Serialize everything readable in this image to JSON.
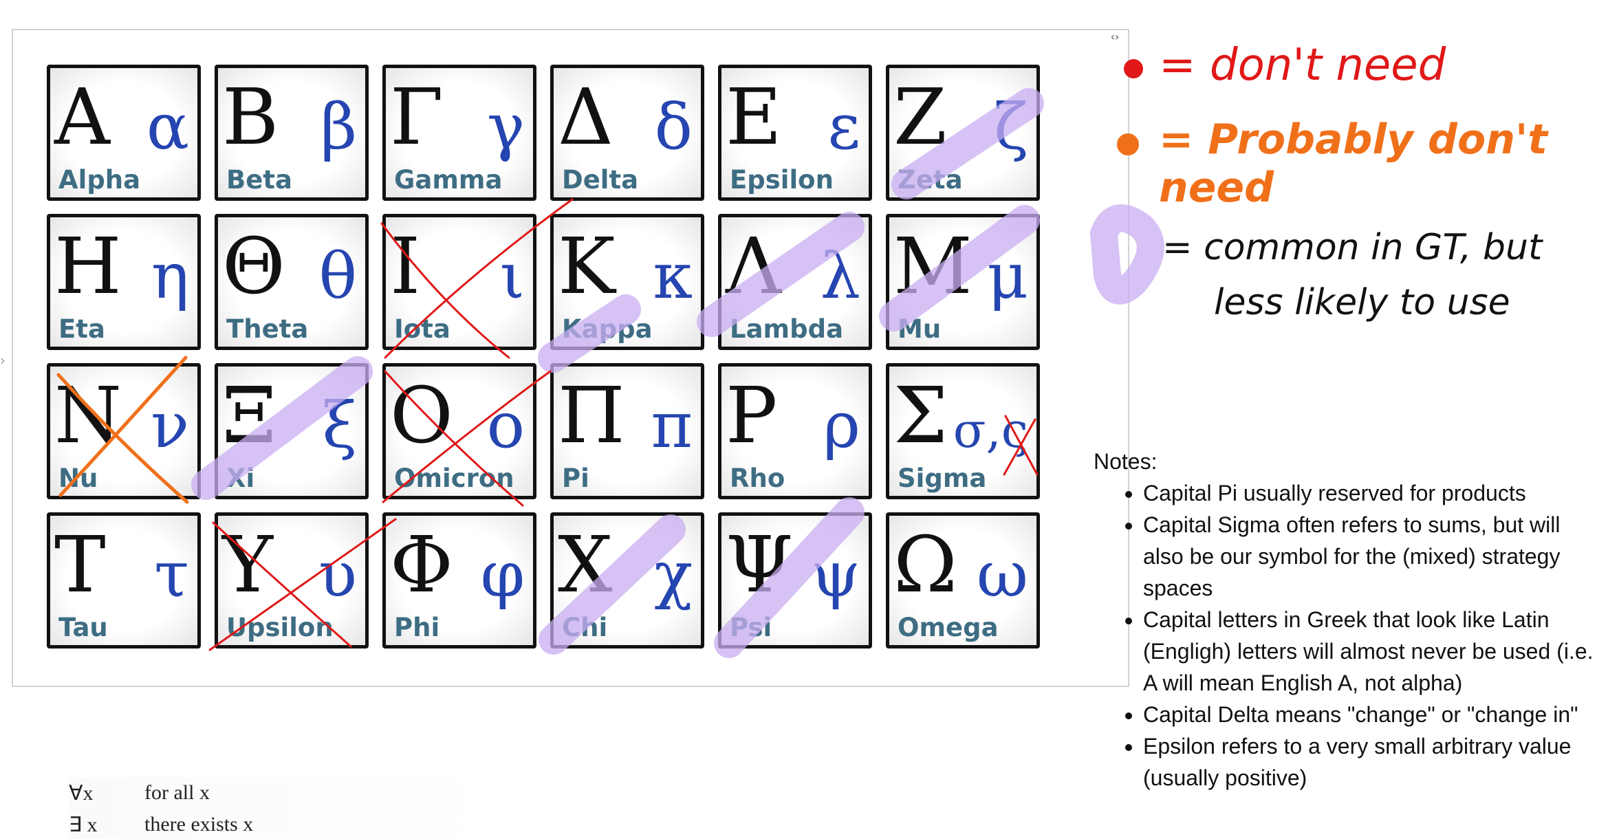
{
  "window": {
    "title": ""
  },
  "panel": {
    "controls_icon": "expand-collapse-icon"
  },
  "tiles": [
    {
      "upper": "Α",
      "lower": "α",
      "name": "Alpha"
    },
    {
      "upper": "Β",
      "lower": "β",
      "name": "Beta"
    },
    {
      "upper": "Γ",
      "lower": "γ",
      "name": "Gamma"
    },
    {
      "upper": "Δ",
      "lower": "δ",
      "name": "Delta"
    },
    {
      "upper": "Ε",
      "lower": "ε",
      "name": "Epsilon"
    },
    {
      "upper": "Ζ",
      "lower": "ζ",
      "name": "Zeta"
    },
    {
      "upper": "Η",
      "lower": "η",
      "name": "Eta"
    },
    {
      "upper": "Θ",
      "lower": "θ",
      "name": "Theta"
    },
    {
      "upper": "Ι",
      "lower": "ι",
      "name": "Iota"
    },
    {
      "upper": "Κ",
      "lower": "κ",
      "name": "Kappa"
    },
    {
      "upper": "Λ",
      "lower": "λ",
      "name": "Lambda"
    },
    {
      "upper": "Μ",
      "lower": "μ",
      "name": "Mu"
    },
    {
      "upper": "Ν",
      "lower": "ν",
      "name": "Nu"
    },
    {
      "upper": "Ξ",
      "lower": "ξ",
      "name": "Xi"
    },
    {
      "upper": "Ο",
      "lower": "ο",
      "name": "Omicron"
    },
    {
      "upper": "Π",
      "lower": "π",
      "name": "Pi"
    },
    {
      "upper": "Ρ",
      "lower": "ρ",
      "name": "Rho"
    },
    {
      "upper": "Σ",
      "lower": "σ,ς",
      "name": "Sigma"
    },
    {
      "upper": "Τ",
      "lower": "τ",
      "name": "Tau"
    },
    {
      "upper": "Υ",
      "lower": "υ",
      "name": "Upsilon"
    },
    {
      "upper": "Φ",
      "lower": "φ",
      "name": "Phi"
    },
    {
      "upper": "Χ",
      "lower": "χ",
      "name": "Chi"
    },
    {
      "upper": "Ψ",
      "lower": "ψ",
      "name": "Psi"
    },
    {
      "upper": "Ω",
      "lower": "ω",
      "name": "Omega"
    }
  ],
  "legend": {
    "red": "= don't need",
    "orange": "= Probably don't need",
    "purple_line1": "= common in GT, but",
    "purple_line2": "less likely to use",
    "colors": {
      "red": "#e01818",
      "orange": "#f0701a",
      "purple": "#c8aef2"
    }
  },
  "notes": {
    "heading": "Notes:",
    "items": [
      "Capital Pi usually reserved for products",
      "Capital Sigma often refers to sums, but will also be our symbol for the (mixed) strategy spaces",
      "Capital letters in Greek that look like Latin (Engligh) letters will almost never be used (i.e. A will mean English A, not alpha)",
      "Capital Delta means \"change\" or \"change in\"",
      "Epsilon refers to a very small arbitrary value  (usually positive)"
    ]
  },
  "logic": [
    {
      "symbol": "∀x",
      "meaning": "for all x"
    },
    {
      "symbol": "∃ x",
      "meaning": "there exists x"
    }
  ]
}
